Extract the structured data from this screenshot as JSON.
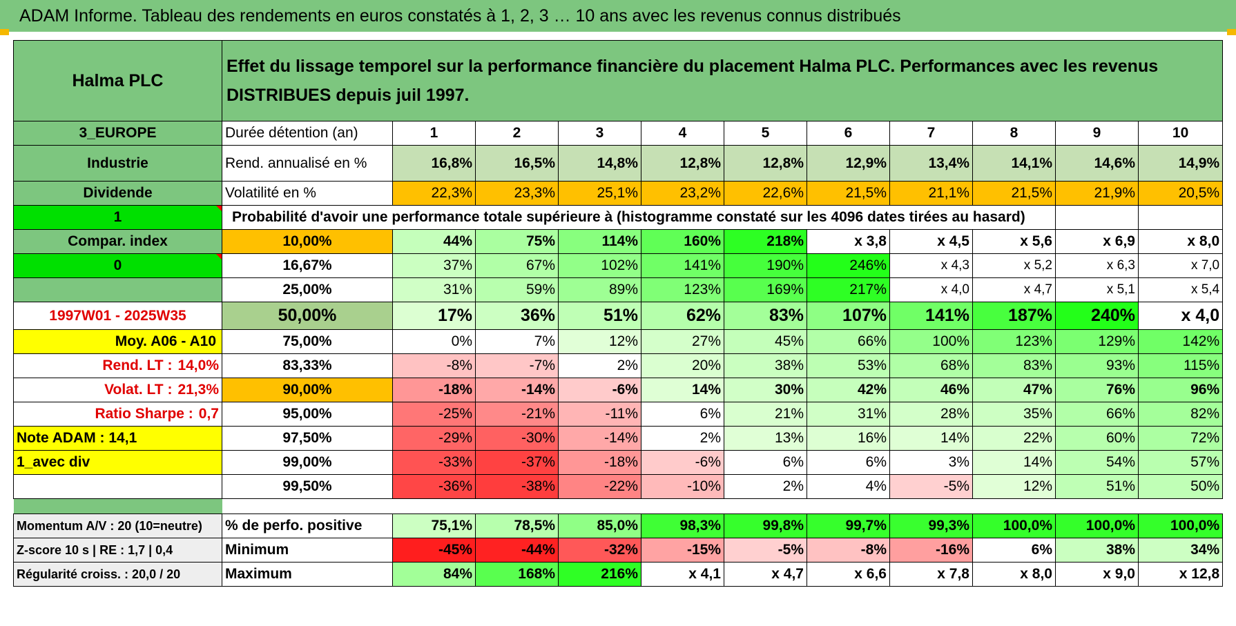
{
  "title": "ADAM Informe. Tableau des rendements en euros constatés à 1, 2, 3 … 10 ans avec les revenus connus distribués",
  "header": {
    "company": "Halma PLC",
    "description": "Effet du lissage temporel sur la performance financière du placement Halma PLC. Performances avec les revenus DISTRIBUES depuis juil 1997."
  },
  "side": {
    "region": "3_EUROPE",
    "sector": "Industrie",
    "dividend_label": "Dividende",
    "dividend_flag": "1",
    "compar_label": "Compar. index",
    "compar_flag": "0",
    "period": "1997W01 - 2025W35",
    "moy": "Moy. A06 - A10",
    "rend_lt_label": "Rend. LT :",
    "rend_lt_value": "14,0%",
    "volat_lt_label": "Volat. LT :",
    "volat_lt_value": "21,3%",
    "sharpe_label": "Ratio Sharpe :",
    "sharpe_value": "0,7",
    "note": "Note ADAM : 14,1",
    "div_mode": "1_avec div",
    "momentum": "Momentum A/V : 20 (10=neutre)",
    "zscore": "Z-score 10 s | RE : 1,7 | 0,4",
    "regularite": "Régularité croiss. : 20,0 / 20"
  },
  "labels": {
    "duree": "Durée détention (an)",
    "rend": "Rend. annualisé en %",
    "vol": "Volatilité en %",
    "prob": "Probabilité d'avoir une performance totale supérieure à (histogramme constaté sur les 4096 dates tirées au hasard)",
    "pos": "% de perfo. positive",
    "min": "Minimum",
    "max": "Maximum"
  },
  "years": [
    "1",
    "2",
    "3",
    "4",
    "5",
    "6",
    "7",
    "8",
    "9",
    "10"
  ],
  "rend": [
    "16,8%",
    "16,5%",
    "14,8%",
    "12,8%",
    "12,8%",
    "12,9%",
    "13,4%",
    "14,1%",
    "14,6%",
    "14,9%"
  ],
  "vol": [
    "22,3%",
    "23,3%",
    "25,1%",
    "23,2%",
    "22,6%",
    "21,5%",
    "21,1%",
    "21,5%",
    "21,9%",
    "20,5%"
  ],
  "prob_rows": [
    {
      "p": "10,00%",
      "v": [
        "44%",
        "75%",
        "114%",
        "160%",
        "218%",
        "x 3,8",
        "x 4,5",
        "x 5,6",
        "x 6,9",
        "x 8,0"
      ]
    },
    {
      "p": "16,67%",
      "v": [
        "37%",
        "67%",
        "102%",
        "141%",
        "190%",
        "246%",
        "x 4,3",
        "x 5,2",
        "x 6,3",
        "x 7,0"
      ]
    },
    {
      "p": "25,00%",
      "v": [
        "31%",
        "59%",
        "89%",
        "123%",
        "169%",
        "217%",
        "x 4,0",
        "x 4,7",
        "x 5,1",
        "x 5,4"
      ]
    },
    {
      "p": "50,00%",
      "v": [
        "17%",
        "36%",
        "51%",
        "62%",
        "83%",
        "107%",
        "141%",
        "187%",
        "240%",
        "x 4,0"
      ]
    },
    {
      "p": "75,00%",
      "v": [
        "0%",
        "7%",
        "12%",
        "27%",
        "45%",
        "66%",
        "100%",
        "123%",
        "129%",
        "142%"
      ]
    },
    {
      "p": "83,33%",
      "v": [
        "-8%",
        "-7%",
        "2%",
        "20%",
        "38%",
        "53%",
        "68%",
        "83%",
        "93%",
        "115%"
      ]
    },
    {
      "p": "90,00%",
      "v": [
        "-18%",
        "-14%",
        "-6%",
        "14%",
        "30%",
        "42%",
        "46%",
        "47%",
        "76%",
        "96%"
      ]
    },
    {
      "p": "95,00%",
      "v": [
        "-25%",
        "-21%",
        "-11%",
        "6%",
        "21%",
        "31%",
        "28%",
        "35%",
        "66%",
        "82%"
      ]
    },
    {
      "p": "97,50%",
      "v": [
        "-29%",
        "-30%",
        "-14%",
        "2%",
        "13%",
        "16%",
        "14%",
        "22%",
        "60%",
        "72%"
      ]
    },
    {
      "p": "99,00%",
      "v": [
        "-33%",
        "-37%",
        "-18%",
        "-6%",
        "6%",
        "6%",
        "3%",
        "14%",
        "54%",
        "57%"
      ]
    },
    {
      "p": "99,50%",
      "v": [
        "-36%",
        "-38%",
        "-22%",
        "-10%",
        "2%",
        "4%",
        "-5%",
        "12%",
        "51%",
        "50%"
      ]
    }
  ],
  "pos": [
    "75,1%",
    "78,5%",
    "85,0%",
    "98,3%",
    "99,8%",
    "99,7%",
    "99,3%",
    "100,0%",
    "100,0%",
    "100,0%"
  ],
  "min": [
    "-45%",
    "-44%",
    "-32%",
    "-15%",
    "-5%",
    "-8%",
    "-16%",
    "6%",
    "38%",
    "34%"
  ],
  "max": [
    "84%",
    "168%",
    "216%",
    "x 4,1",
    "x 4,7",
    "x 6,6",
    "x 7,8",
    "x 8,0",
    "x 9,0",
    "x 12,8"
  ],
  "colors": {
    "green_header": "#7dc67f",
    "bright_green": "#00e000",
    "orange": "#ffc000",
    "yellow": "#ffff00",
    "red_text": "#e00000",
    "light_green": "#c6e0b4"
  }
}
